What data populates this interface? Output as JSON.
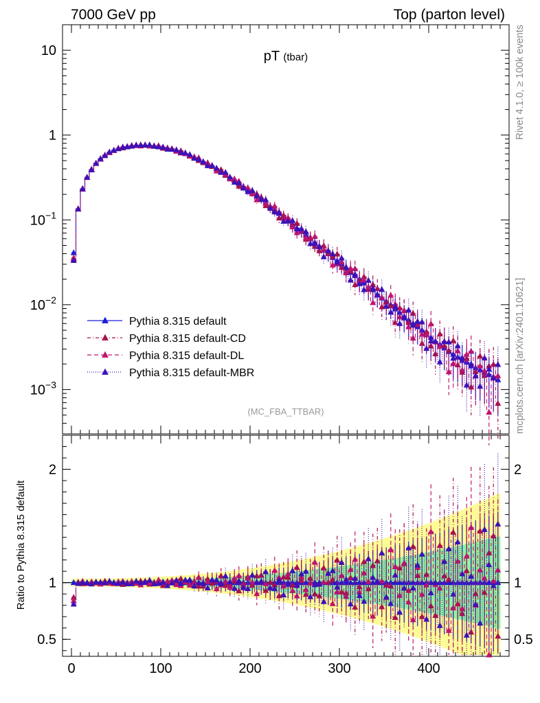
{
  "header": {
    "left": "7000 GeV pp",
    "right": "Top (parton level)"
  },
  "side_labels": {
    "rivet": "Rivet 4.1.0, ≥ 100k events",
    "mcplots": "mcplots.cern.ch [arXiv:2401.10621]"
  },
  "chart_data": [
    {
      "type": "line",
      "title": "pT",
      "title_sub": "(tbar)",
      "watermark": "(MC_FBA_TTBAR)",
      "yscale": "log",
      "xlim": [
        -10,
        490
      ],
      "ylim": [
        0.0003,
        20
      ],
      "y_ticks": [
        {
          "value": 10,
          "mant": "10",
          "exp": ""
        },
        {
          "value": 1,
          "mant": "1",
          "exp": ""
        },
        {
          "value": 0.1,
          "mant": "10",
          "exp": "−1"
        },
        {
          "value": 0.01,
          "mant": "10",
          "exp": "−2"
        },
        {
          "value": 0.001,
          "mant": "10",
          "exp": "−3"
        }
      ],
      "legend_position": "bottom-left",
      "series": [
        {
          "name": "Pythia 8.315 default",
          "color": "#1a1adf",
          "dash": "",
          "phase": 0.0
        },
        {
          "name": "Pythia 8.315 default-CD",
          "color": "#a8124a",
          "dash": "5,3,1,3",
          "phase": 1.7
        },
        {
          "name": "Pythia 8.315 default-DL",
          "color": "#c0156e",
          "dash": "6,4",
          "phase": 3.1
        },
        {
          "name": "Pythia 8.315 default-MBR",
          "color": "#3c12b8",
          "dash": "1,2",
          "phase": 4.6
        }
      ],
      "x": [
        2.5,
        7.5,
        12.5,
        17.5,
        22.5,
        27.5,
        32.5,
        37.5,
        42.5,
        47.5,
        52.5,
        57.5,
        62.5,
        67.5,
        72.5,
        77.5,
        82.5,
        87.5,
        92.5,
        97.5,
        102.5,
        107.5,
        112.5,
        117.5,
        122.5,
        127.5,
        132.5,
        137.5,
        142.5,
        147.5,
        152.5,
        157.5,
        162.5,
        167.5,
        172.5,
        177.5,
        182.5,
        187.5,
        192.5,
        197.5,
        202.5,
        207.5,
        212.5,
        217.5,
        222.5,
        227.5,
        232.5,
        237.5,
        242.5,
        247.5,
        252.5,
        257.5,
        262.5,
        267.5,
        272.5,
        277.5,
        282.5,
        287.5,
        292.5,
        297.5,
        302.5,
        307.5,
        312.5,
        317.5,
        322.5,
        327.5,
        332.5,
        337.5,
        342.5,
        347.5,
        352.5,
        357.5,
        362.5,
        367.5,
        372.5,
        377.5,
        382.5,
        387.5,
        392.5,
        397.5,
        402.5,
        407.5,
        412.5,
        417.5,
        422.5,
        427.5,
        432.5,
        437.5,
        442.5,
        447.5,
        452.5,
        457.5,
        462.5,
        467.5,
        472.5,
        477.5
      ],
      "reference_values": [
        0.041,
        0.135,
        0.232,
        0.318,
        0.393,
        0.463,
        0.525,
        0.574,
        0.623,
        0.662,
        0.695,
        0.716,
        0.733,
        0.746,
        0.755,
        0.758,
        0.758,
        0.752,
        0.745,
        0.733,
        0.717,
        0.699,
        0.679,
        0.656,
        0.631,
        0.603,
        0.576,
        0.548,
        0.516,
        0.487,
        0.457,
        0.427,
        0.398,
        0.369,
        0.343,
        0.317,
        0.293,
        0.269,
        0.248,
        0.227,
        0.208,
        0.191,
        0.174,
        0.158,
        0.144,
        0.131,
        0.119,
        0.108,
        0.098,
        0.089,
        0.08,
        0.073,
        0.066,
        0.06,
        0.054,
        0.049,
        0.044,
        0.04,
        0.036,
        0.033,
        0.03,
        0.027,
        0.024,
        0.022,
        0.02,
        0.018,
        0.016,
        0.015,
        0.013,
        0.012,
        0.011,
        0.01,
        0.0089,
        0.0081,
        0.0073,
        0.0066,
        0.006,
        0.0055,
        0.005,
        0.0045,
        0.0041,
        0.0037,
        0.0034,
        0.0031,
        0.0028,
        0.0026,
        0.0024,
        0.0022,
        0.0021,
        0.0019,
        0.0018,
        0.0017,
        0.0016,
        0.0015,
        0.0014,
        0.0013
      ]
    },
    {
      "type": "line",
      "ylabel": "Ratio to Pythia 8.315 default",
      "xlim": [
        -10,
        490
      ],
      "ylim": [
        0.35,
        2.3
      ],
      "y_ticks": [
        {
          "value": 0.5,
          "label": "0.5"
        },
        {
          "value": 1,
          "label": "1"
        },
        {
          "value": 2,
          "label": "2"
        }
      ],
      "x_ticks": [
        {
          "value": 0,
          "label": "0"
        },
        {
          "value": 100,
          "label": "100"
        },
        {
          "value": 200,
          "label": "200"
        },
        {
          "value": 300,
          "label": "300"
        },
        {
          "value": 400,
          "label": "400"
        }
      ],
      "band_colors": {
        "inner": "#8ef59a",
        "outer": "#fdfb96"
      },
      "reference_line": 1
    }
  ]
}
